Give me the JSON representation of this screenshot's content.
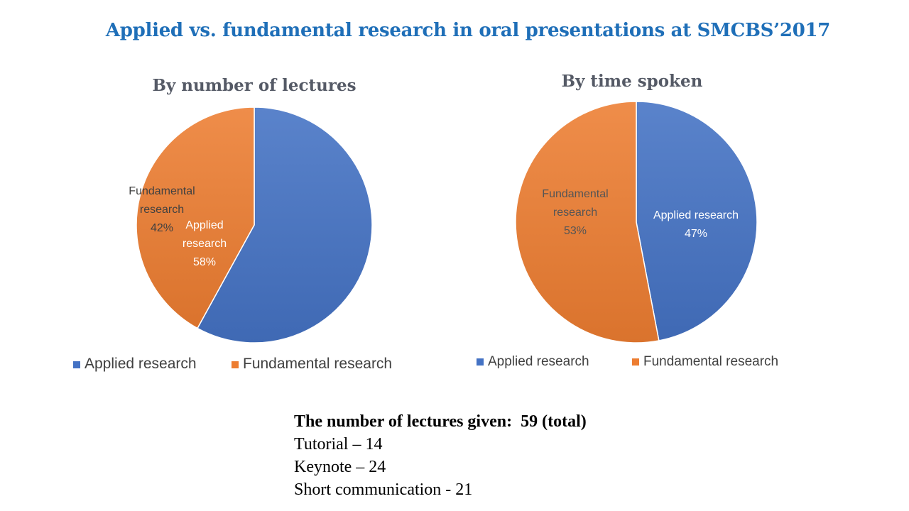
{
  "slide": {
    "title": "Applied vs. fundamental research in oral presentations at SMCBS’2017"
  },
  "chart_data": [
    {
      "type": "pie",
      "title": "By number of lectures",
      "labels": [
        "Applied research",
        "Fundamental research"
      ],
      "values": [
        58,
        42
      ],
      "slice_labels": [
        [
          "Applied",
          "research",
          "58%"
        ],
        [
          "Fundamental",
          "research",
          "42%"
        ]
      ],
      "colors": [
        "#4472c4",
        "#ed7d31"
      ],
      "legend": "bottom"
    },
    {
      "type": "pie",
      "title": "By time spoken",
      "labels": [
        "Applied research",
        "Fundamental research"
      ],
      "values": [
        47,
        53
      ],
      "slice_labels": [
        [
          "Applied research",
          "47%"
        ],
        [
          "Fundamental",
          "research",
          "53%"
        ]
      ],
      "colors": [
        "#4472c4",
        "#ed7d31"
      ],
      "legend": "bottom"
    }
  ],
  "info": {
    "heading": "The number of lectures given:  59 (total)",
    "lines": [
      "Tutorial – 14",
      "Keynote – 24",
      "Short communication - 21"
    ]
  }
}
